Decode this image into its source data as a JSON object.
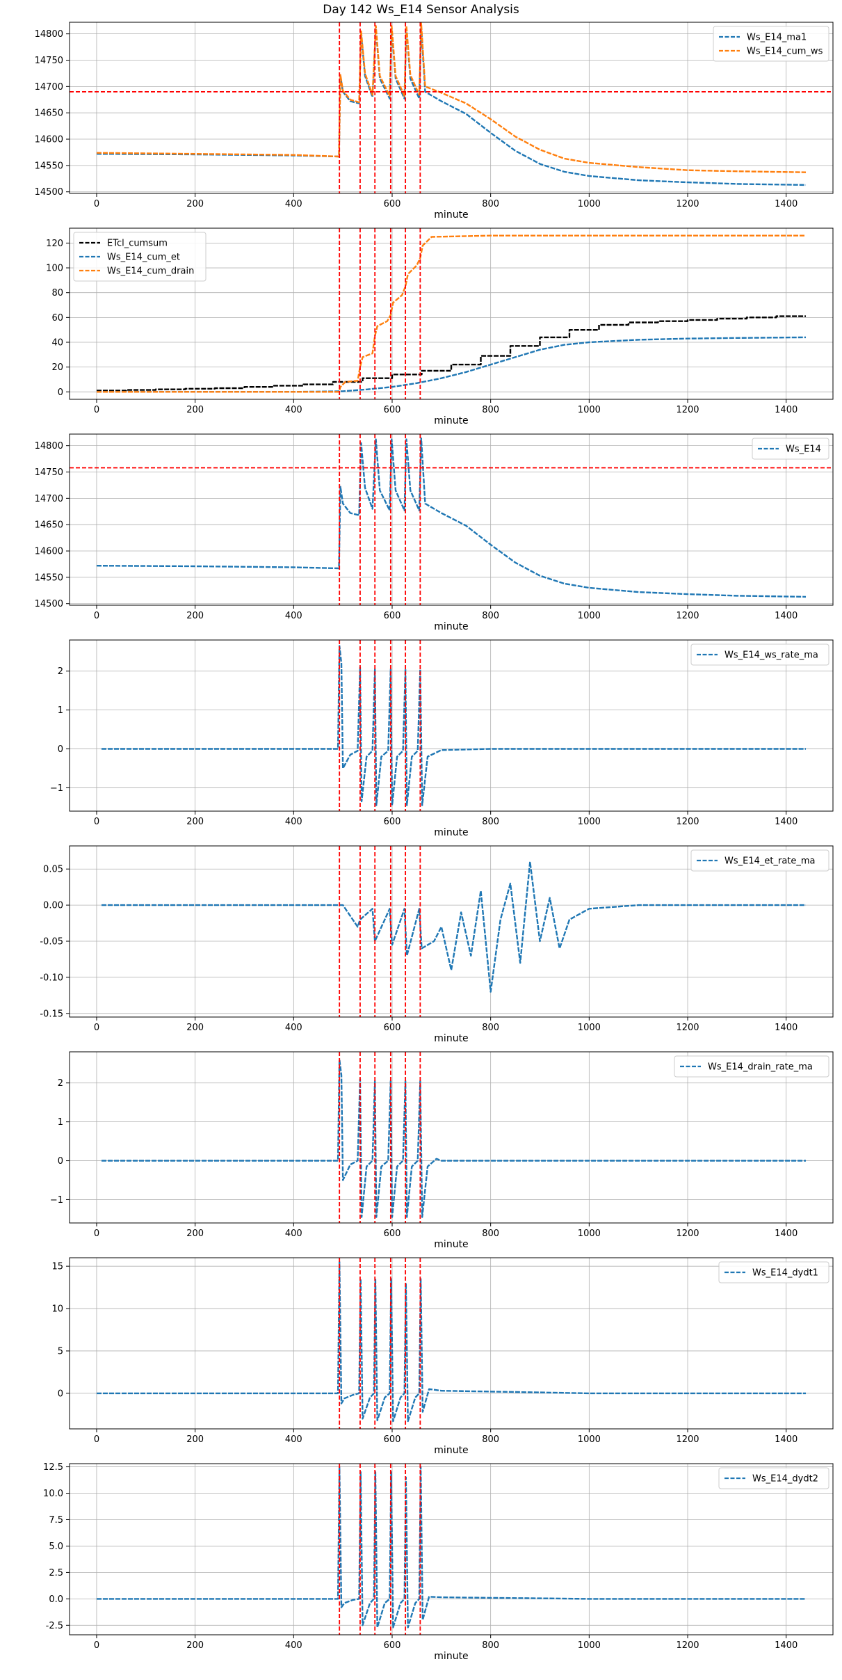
{
  "figure_title": "Day 142 Ws_E14 Sensor Analysis",
  "colors": {
    "blue": "#1f77b4",
    "orange": "#ff7f0e",
    "black": "#000000",
    "red": "#ff0000",
    "grid": "#b0b0b0"
  },
  "chart_data": [
    {
      "type": "line",
      "xlabel": "minute",
      "xlim": [
        -55,
        1495
      ],
      "xticks": [
        0,
        200,
        400,
        600,
        800,
        1000,
        1200,
        1400
      ],
      "ylim": [
        14497,
        14822
      ],
      "yticks": [
        14500,
        14550,
        14600,
        14650,
        14700,
        14750,
        14800
      ],
      "legend_loc": "upper right",
      "vlines": [
        493,
        535,
        565,
        597,
        627,
        657
      ],
      "hlines": [
        14690
      ],
      "grid": true,
      "series": [
        {
          "name": "Ws_E14_ma1",
          "color": "#1f77b4",
          "style": "dashed",
          "x": [
            0,
            200,
            400,
            492,
            495,
            500,
            515,
            533,
            537,
            545,
            560,
            567,
            575,
            595,
            599,
            607,
            625,
            629,
            637,
            655,
            659,
            667,
            700,
            750,
            800,
            850,
            900,
            950,
            1000,
            1100,
            1200,
            1300,
            1440
          ],
          "y": [
            14572,
            14571,
            14569,
            14567,
            14720,
            14690,
            14672,
            14668,
            14800,
            14720,
            14680,
            14810,
            14715,
            14677,
            14810,
            14715,
            14677,
            14810,
            14715,
            14677,
            14812,
            14690,
            14672,
            14648,
            14612,
            14578,
            14553,
            14538,
            14530,
            14522,
            14518,
            14515,
            14513
          ]
        },
        {
          "name": "Ws_E14_cum_ws",
          "color": "#ff7f0e",
          "style": "dashed",
          "x": [
            0,
            200,
            400,
            492,
            495,
            500,
            515,
            533,
            537,
            545,
            560,
            567,
            575,
            595,
            599,
            607,
            625,
            629,
            637,
            655,
            659,
            667,
            700,
            750,
            800,
            850,
            900,
            950,
            1000,
            1100,
            1200,
            1300,
            1440
          ],
          "y": [
            14574,
            14572,
            14570,
            14567,
            14722,
            14692,
            14675,
            14670,
            14805,
            14725,
            14684,
            14815,
            14720,
            14682,
            14815,
            14720,
            14682,
            14815,
            14722,
            14684,
            14820,
            14700,
            14688,
            14668,
            14638,
            14605,
            14580,
            14563,
            14555,
            14547,
            14541,
            14539,
            14537
          ]
        }
      ]
    },
    {
      "type": "line",
      "xlabel": "minute",
      "xlim": [
        -55,
        1495
      ],
      "xticks": [
        0,
        200,
        400,
        600,
        800,
        1000,
        1200,
        1400
      ],
      "ylim": [
        -6,
        132
      ],
      "yticks": [
        0,
        20,
        40,
        60,
        80,
        100,
        120
      ],
      "legend_loc": "upper left",
      "vlines": [
        493,
        535,
        565,
        597,
        627,
        657
      ],
      "grid": true,
      "series": [
        {
          "name": "ETcl_cumsum",
          "color": "#000000",
          "style": "dashed",
          "step": true,
          "x": [
            0,
            60,
            120,
            180,
            240,
            300,
            360,
            420,
            480,
            540,
            600,
            660,
            720,
            780,
            840,
            900,
            960,
            1020,
            1080,
            1140,
            1200,
            1260,
            1320,
            1380,
            1440
          ],
          "y": [
            1,
            1.5,
            2,
            2.5,
            3,
            4,
            5,
            6,
            8,
            11,
            14,
            17,
            22,
            29,
            37,
            44,
            50,
            54,
            56,
            57,
            58,
            59,
            60,
            61,
            61
          ]
        },
        {
          "name": "Ws_E14_cum_et",
          "color": "#1f77b4",
          "style": "dashed",
          "x": [
            0,
            200,
            400,
            500,
            550,
            600,
            650,
            700,
            750,
            800,
            850,
            900,
            950,
            1000,
            1100,
            1200,
            1300,
            1440
          ],
          "y": [
            0,
            0,
            0,
            0.5,
            2,
            4,
            7,
            11,
            16,
            22,
            28,
            34,
            38,
            40,
            42,
            43,
            43.5,
            44
          ]
        },
        {
          "name": "Ws_E14_cum_drain",
          "color": "#ff7f0e",
          "style": "dashed",
          "x": [
            0,
            200,
            400,
            492,
            495,
            505,
            530,
            535,
            540,
            560,
            565,
            570,
            590,
            597,
            602,
            620,
            627,
            632,
            650,
            657,
            662,
            680,
            800,
            1000,
            1200,
            1440
          ],
          "y": [
            0,
            0,
            0,
            0,
            4,
            8,
            9,
            20,
            28,
            31,
            45,
            53,
            57,
            62,
            72,
            78,
            85,
            95,
            102,
            108,
            118,
            125,
            126,
            126,
            126,
            126
          ]
        }
      ]
    },
    {
      "type": "line",
      "xlabel": "minute",
      "xlim": [
        -55,
        1495
      ],
      "xticks": [
        0,
        200,
        400,
        600,
        800,
        1000,
        1200,
        1400
      ],
      "ylim": [
        14497,
        14822
      ],
      "yticks": [
        14500,
        14550,
        14600,
        14650,
        14700,
        14750,
        14800
      ],
      "legend_loc": "upper right",
      "vlines": [
        493,
        535,
        565,
        597,
        627,
        657
      ],
      "hlines": [
        14758
      ],
      "grid": true,
      "series": [
        {
          "name": "Ws_E14",
          "color": "#1f77b4",
          "style": "dashed",
          "x": [
            0,
            200,
            400,
            492,
            495,
            500,
            515,
            533,
            537,
            545,
            560,
            567,
            575,
            595,
            599,
            607,
            625,
            629,
            637,
            655,
            659,
            667,
            700,
            750,
            800,
            850,
            900,
            950,
            1000,
            1100,
            1200,
            1300,
            1440
          ],
          "y": [
            14572,
            14571,
            14569,
            14567,
            14722,
            14690,
            14672,
            14668,
            14805,
            14720,
            14680,
            14812,
            14715,
            14677,
            14812,
            14715,
            14677,
            14812,
            14715,
            14677,
            14814,
            14690,
            14672,
            14648,
            14612,
            14578,
            14553,
            14538,
            14530,
            14522,
            14518,
            14515,
            14513
          ]
        }
      ]
    },
    {
      "type": "line",
      "xlabel": "minute",
      "xlim": [
        -55,
        1495
      ],
      "xticks": [
        0,
        200,
        400,
        600,
        800,
        1000,
        1200,
        1400
      ],
      "ylim": [
        -1.6,
        2.8
      ],
      "yticks": [
        -1,
        0,
        1,
        2
      ],
      "legend_loc": "upper right",
      "vlines": [
        493,
        535,
        565,
        597,
        627,
        657
      ],
      "grid": true,
      "series": [
        {
          "name": "Ws_E14_ws_rate_ma",
          "color": "#1f77b4",
          "style": "dashed",
          "x": [
            10,
            200,
            400,
            490,
            493,
            497,
            500,
            515,
            530,
            535,
            538,
            548,
            560,
            565,
            568,
            578,
            592,
            597,
            600,
            610,
            622,
            627,
            630,
            640,
            652,
            657,
            661,
            672,
            700,
            800,
            900,
            1000,
            1100,
            1200,
            1300,
            1440
          ],
          "y": [
            0,
            0,
            0,
            0,
            2.65,
            2.2,
            -0.5,
            -0.15,
            -0.05,
            2.1,
            -1.35,
            -0.2,
            -0.05,
            2.05,
            -1.45,
            -0.2,
            -0.05,
            2.05,
            -1.45,
            -0.2,
            -0.05,
            2.05,
            -1.45,
            -0.2,
            -0.05,
            2.05,
            -1.45,
            -0.2,
            -0.03,
            0,
            0,
            0,
            0,
            0,
            0,
            0
          ]
        }
      ]
    },
    {
      "type": "line",
      "xlabel": "minute",
      "xlim": [
        -55,
        1495
      ],
      "xticks": [
        0,
        200,
        400,
        600,
        800,
        1000,
        1200,
        1400
      ],
      "ylim": [
        -0.155,
        0.082
      ],
      "yticks": [
        -0.15,
        -0.1,
        -0.05,
        0.0,
        0.05
      ],
      "ytick_labels": [
        "-0.15",
        "-0.10",
        "-0.05",
        "0.00",
        "0.05"
      ],
      "legend_loc": "upper right",
      "vlines": [
        493,
        535,
        565,
        597,
        627,
        657
      ],
      "grid": true,
      "series": [
        {
          "name": "Ws_E14_et_rate_ma",
          "color": "#1f77b4",
          "style": "dashed",
          "x": [
            10,
            100,
            200,
            300,
            400,
            492,
            500,
            530,
            535,
            560,
            565,
            595,
            600,
            625,
            630,
            655,
            660,
            685,
            700,
            720,
            740,
            760,
            780,
            800,
            820,
            840,
            860,
            880,
            900,
            920,
            940,
            960,
            1000,
            1100,
            1200,
            1300,
            1440
          ],
          "y": [
            0,
            0,
            0,
            0,
            0,
            0,
            0,
            -0.03,
            -0.02,
            -0.005,
            -0.05,
            -0.005,
            -0.055,
            -0.005,
            -0.07,
            -0.005,
            -0.06,
            -0.05,
            -0.03,
            -0.09,
            -0.01,
            -0.07,
            0.02,
            -0.12,
            -0.02,
            0.03,
            -0.08,
            0.06,
            -0.05,
            0.01,
            -0.06,
            -0.02,
            -0.005,
            0,
            0,
            0,
            0
          ]
        }
      ]
    },
    {
      "type": "line",
      "xlabel": "minute",
      "xlim": [
        -55,
        1495
      ],
      "xticks": [
        0,
        200,
        400,
        600,
        800,
        1000,
        1200,
        1400
      ],
      "ylim": [
        -1.6,
        2.8
      ],
      "yticks": [
        -1,
        0,
        1,
        2
      ],
      "legend_loc": "upper right",
      "vlines": [
        493,
        535,
        565,
        597,
        627,
        657
      ],
      "grid": true,
      "series": [
        {
          "name": "Ws_E14_drain_rate_ma",
          "color": "#1f77b4",
          "style": "dashed",
          "x": [
            10,
            200,
            400,
            490,
            493,
            497,
            500,
            515,
            530,
            535,
            538,
            548,
            560,
            565,
            568,
            578,
            592,
            597,
            600,
            610,
            622,
            627,
            630,
            640,
            652,
            657,
            661,
            672,
            690,
            700,
            800,
            1000,
            1200,
            1440
          ],
          "y": [
            0,
            0,
            0,
            0,
            2.6,
            2.2,
            -0.5,
            -0.1,
            0,
            2.1,
            -1.45,
            -0.15,
            0,
            2.05,
            -1.45,
            -0.15,
            0,
            2.05,
            -1.45,
            -0.15,
            0,
            2.05,
            -1.45,
            -0.15,
            0,
            2.05,
            -1.45,
            -0.15,
            0.05,
            0,
            0,
            0,
            0,
            0
          ]
        }
      ]
    },
    {
      "type": "line",
      "xlabel": "minute",
      "xlim": [
        -55,
        1495
      ],
      "xticks": [
        0,
        200,
        400,
        600,
        800,
        1000,
        1200,
        1400
      ],
      "ylim": [
        -4.2,
        16
      ],
      "yticks": [
        0,
        5,
        10,
        15
      ],
      "legend_loc": "upper right",
      "vlines": [
        493,
        535,
        565,
        597,
        627,
        657
      ],
      "grid": true,
      "series": [
        {
          "name": "Ws_E14_dydt1",
          "color": "#1f77b4",
          "style": "dashed",
          "x": [
            0,
            200,
            400,
            490,
            493,
            497,
            503,
            520,
            533,
            536,
            540,
            555,
            563,
            566,
            570,
            585,
            595,
            598,
            602,
            617,
            625,
            628,
            632,
            647,
            655,
            658,
            662,
            675,
            700,
            800,
            900,
            1000,
            1100,
            1200,
            1300,
            1440
          ],
          "y": [
            0,
            0,
            0,
            0,
            15.5,
            -1.2,
            -0.6,
            -0.2,
            0,
            13.5,
            -3,
            -0.5,
            0,
            13.5,
            -3.2,
            -0.5,
            0,
            13.5,
            -3.3,
            -0.5,
            0,
            13,
            -3.3,
            -0.5,
            0,
            13.5,
            -2.2,
            0.5,
            0.3,
            0.2,
            0.1,
            0,
            0,
            0,
            0,
            0
          ]
        }
      ]
    },
    {
      "type": "line",
      "xlabel": "minute",
      "xlim": [
        -55,
        1495
      ],
      "xticks": [
        0,
        200,
        400,
        600,
        800,
        1000,
        1200,
        1400
      ],
      "ylim": [
        -3.4,
        12.8
      ],
      "yticks": [
        -2.5,
        0.0,
        2.5,
        5.0,
        7.5,
        10.0,
        12.5
      ],
      "ytick_labels": [
        "-2.5",
        "0.0",
        "2.5",
        "5.0",
        "7.5",
        "10.0",
        "12.5"
      ],
      "legend_loc": "upper right",
      "vlines": [
        493,
        535,
        565,
        597,
        627,
        657
      ],
      "grid": true,
      "series": [
        {
          "name": "Ws_E14_dydt2",
          "color": "#1f77b4",
          "style": "dashed",
          "x": [
            0,
            200,
            400,
            490,
            493,
            497,
            503,
            520,
            533,
            536,
            540,
            555,
            563,
            566,
            570,
            585,
            595,
            598,
            602,
            617,
            625,
            628,
            632,
            647,
            655,
            658,
            662,
            675,
            700,
            800,
            900,
            1000,
            1100,
            1200,
            1300,
            1440
          ],
          "y": [
            0,
            0,
            0,
            0,
            12.5,
            -0.8,
            -0.4,
            -0.1,
            0,
            12,
            -2.5,
            -0.4,
            0,
            12,
            -2.7,
            -0.4,
            0,
            12,
            -2.7,
            -0.4,
            0,
            11.5,
            -2.7,
            -0.4,
            0,
            12.5,
            -2,
            0.2,
            0.15,
            0.1,
            0.05,
            0,
            0,
            0,
            0,
            0
          ]
        }
      ]
    }
  ]
}
